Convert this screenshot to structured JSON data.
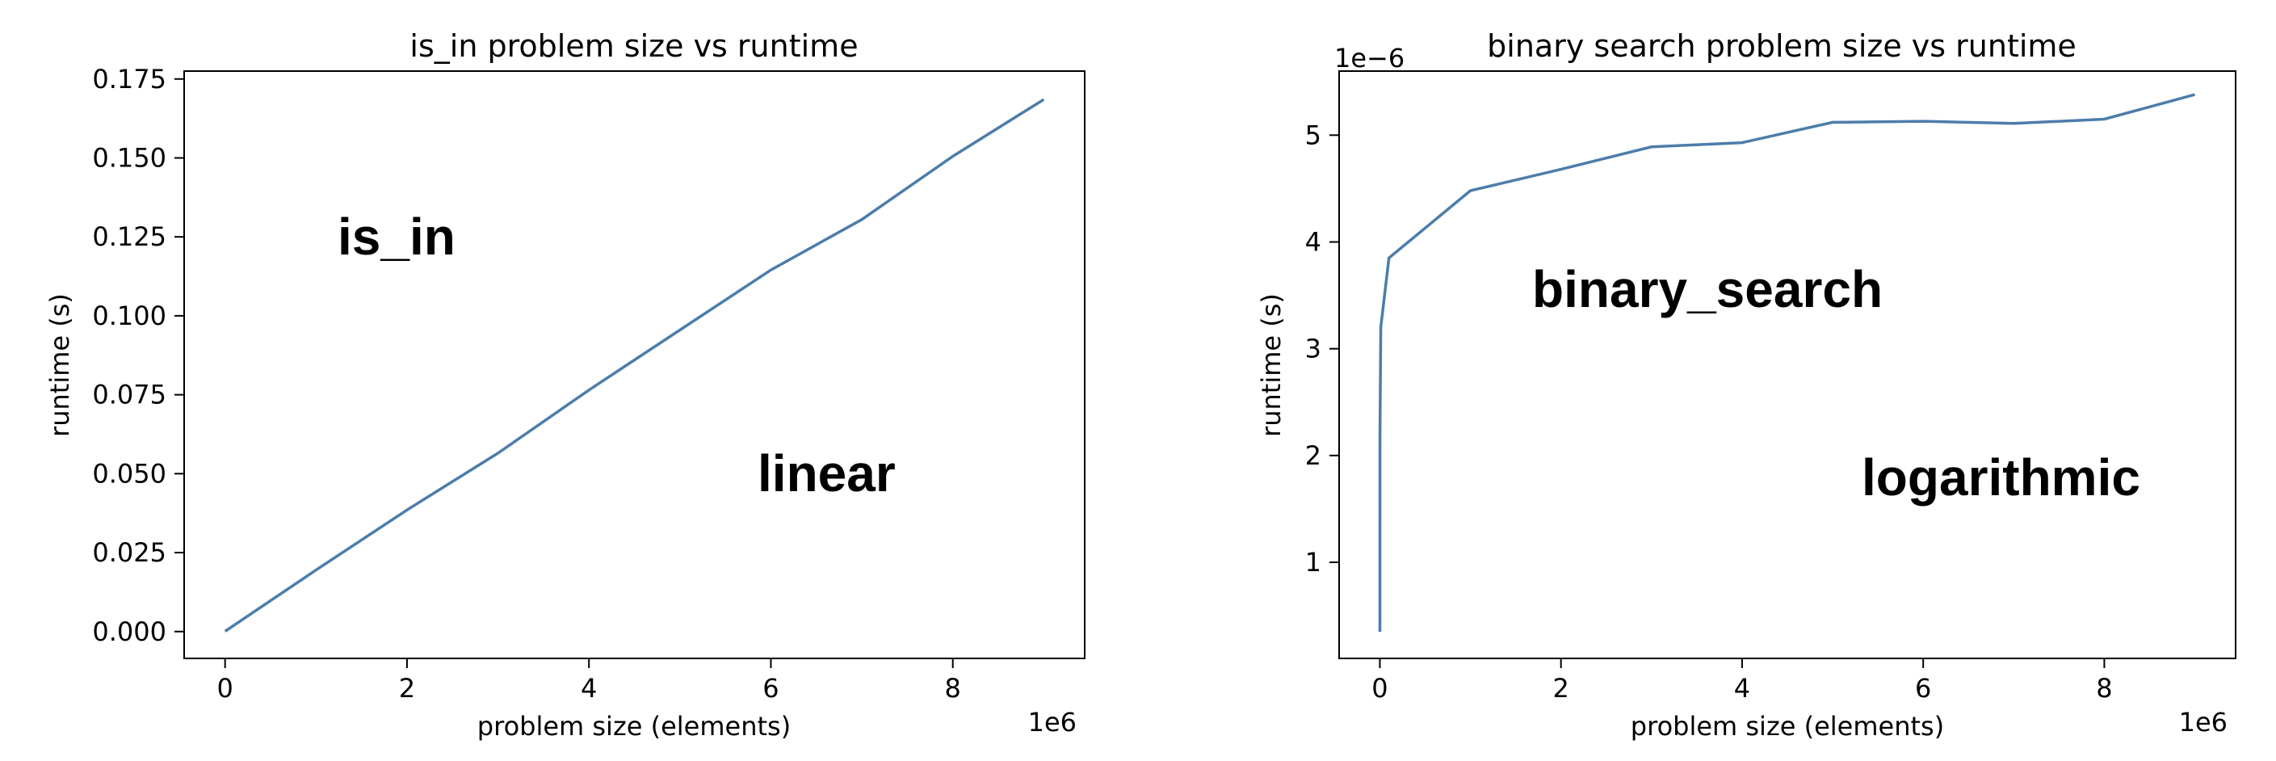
{
  "chart_data": [
    {
      "type": "line",
      "title": "is_in problem size vs runtime",
      "xlabel": "problem size (elements)",
      "ylabel": "runtime (s)",
      "x_offset_label": "1e6",
      "y_offset_label": "",
      "xlim": [
        -0.45,
        9.45
      ],
      "ylim": [
        -0.0085,
        0.1775
      ],
      "x_ticks": [
        0,
        2,
        4,
        6,
        8
      ],
      "x_tick_labels": [
        "0",
        "2",
        "4",
        "6",
        "8"
      ],
      "y_ticks": [
        0,
        0.025,
        0.05,
        0.075,
        0.1,
        0.125,
        0.15,
        0.175
      ],
      "y_tick_labels": [
        "0.000",
        "0.025",
        "0.050",
        "0.075",
        "0.100",
        "0.125",
        "0.150",
        "0.175"
      ],
      "series": [
        {
          "x": [
            0,
            1,
            2,
            3,
            4,
            5,
            6,
            7,
            8,
            9
          ],
          "y": [
            0.0001,
            0.0195,
            0.0385,
            0.0565,
            0.0765,
            0.0955,
            0.1145,
            0.1305,
            0.1505,
            0.1685
          ]
        }
      ],
      "annotations": [
        {
          "text": "is_in",
          "color": "#6a2c91"
        },
        {
          "text": "linear",
          "color": "#f2b83a"
        }
      ]
    },
    {
      "type": "line",
      "title": "binary search problem size vs runtime",
      "xlabel": "problem size (elements)",
      "ylabel": "runtime (s)",
      "x_offset_label": "1e6",
      "y_offset_label": "1e−6",
      "xlim": [
        -0.45,
        9.45
      ],
      "ylim": [
        0.1,
        5.6
      ],
      "x_ticks": [
        0,
        2,
        4,
        6,
        8
      ],
      "x_tick_labels": [
        "0",
        "2",
        "4",
        "6",
        "8"
      ],
      "y_ticks": [
        1,
        2,
        3,
        4,
        5
      ],
      "y_tick_labels": [
        "1",
        "2",
        "3",
        "4",
        "5"
      ],
      "series": [
        {
          "x": [
            0,
            0.001,
            0.01,
            0.1,
            1,
            2,
            3,
            4,
            5,
            6,
            7,
            8,
            9
          ],
          "y": [
            0.35,
            2.2,
            3.2,
            3.85,
            4.48,
            4.68,
            4.89,
            4.93,
            5.12,
            5.13,
            5.11,
            5.15,
            5.38
          ]
        }
      ],
      "annotations": [
        {
          "text": "binary_search",
          "color": "#6a2c91"
        },
        {
          "text": "logarithmic",
          "color": "#f2b83a"
        }
      ]
    }
  ],
  "colors": {
    "line": "#4c7daa",
    "label_purple": "#6a2c91",
    "label_gold": "#f2b83a"
  }
}
